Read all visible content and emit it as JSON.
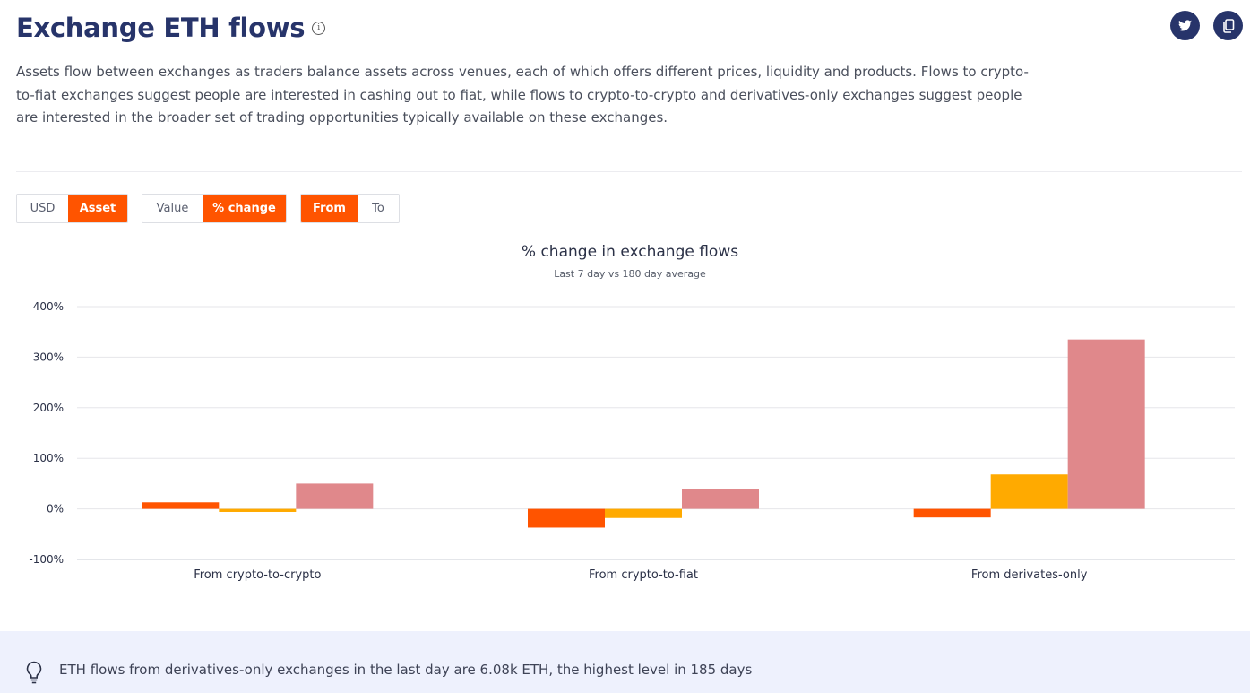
{
  "header": {
    "title": "Exchange ETH flows",
    "info_icon": "info-icon",
    "share_icons": [
      "twitter-icon",
      "copy-icon"
    ],
    "description": "Assets flow between exchanges as traders balance assets across venues, each of which offers different prices, liquidity and products. Flows to crypto-to-fiat exchanges suggest people are interested in cashing out to fiat, while flows to crypto-to-crypto and derivatives-only exchanges suggest people are interested in the broader set of trading opportunities typically available on these exchanges."
  },
  "controls": {
    "unit": {
      "options": [
        "USD",
        "Asset"
      ],
      "selected": "Asset"
    },
    "metric": {
      "options": [
        "Value",
        "% change"
      ],
      "selected": "% change"
    },
    "direction": {
      "options": [
        "From",
        "To"
      ],
      "selected": "From"
    }
  },
  "colors": {
    "accent": "#ff5400",
    "title": "#27346a",
    "series": [
      "#ff5400",
      "#ffaa00",
      "#e0888b"
    ]
  },
  "chart_data": {
    "type": "bar",
    "title": "% change in exchange flows",
    "subtitle": "Last 7 day vs 180 day average",
    "categories": [
      "From crypto-to-crypto",
      "From crypto-to-fiat",
      "From derivates-only"
    ],
    "series": [
      {
        "values": [
          13,
          -37,
          -17
        ]
      },
      {
        "values": [
          -6,
          -18,
          68
        ]
      },
      {
        "values": [
          50,
          40,
          335
        ]
      }
    ],
    "ylim": [
      -100,
      400
    ],
    "yticks": [
      400,
      300,
      200,
      100,
      0,
      -100
    ],
    "ytick_labels": [
      "400%",
      "300%",
      "200%",
      "100%",
      "0%",
      "-100%"
    ],
    "grid": true
  },
  "insight": {
    "icon": "lightbulb-icon",
    "text": "ETH flows from derivatives-only exchanges in the last day are 6.08k ETH, the highest level in 185 days"
  }
}
